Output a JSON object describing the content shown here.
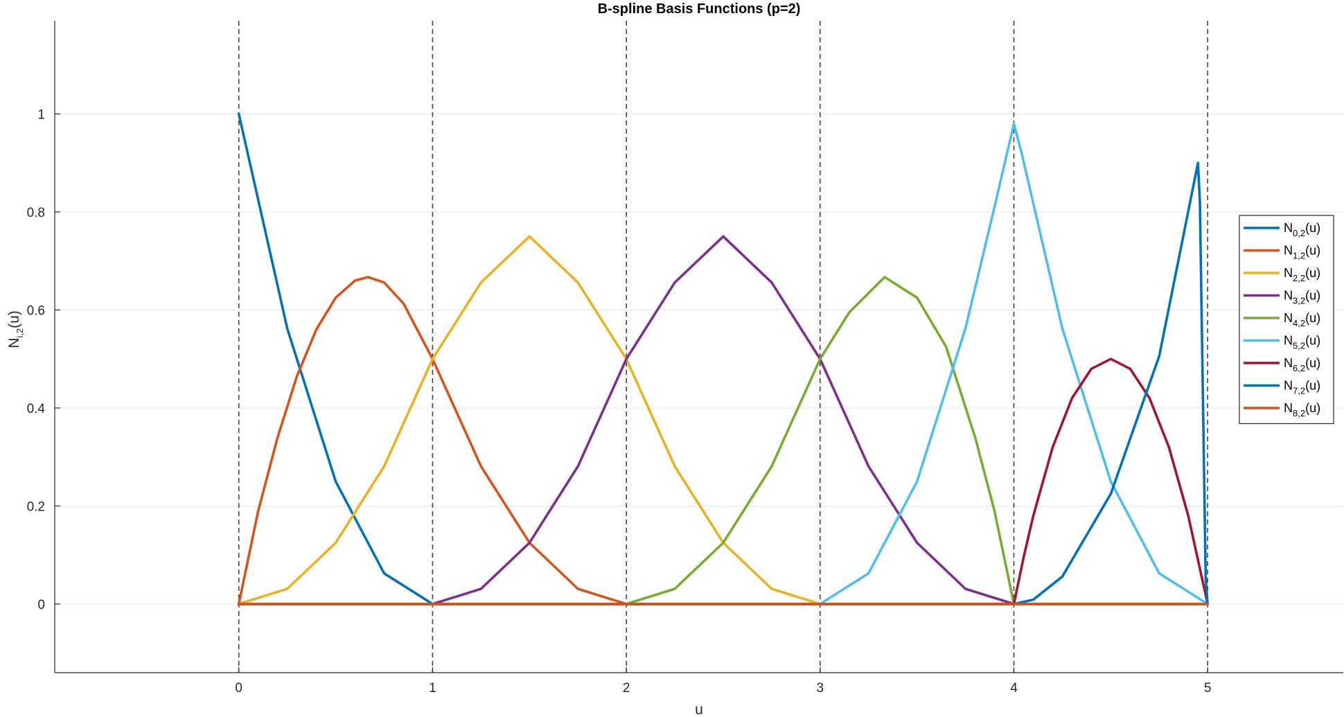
{
  "chart_data": {
    "type": "line",
    "title": "B-spline Basis Functions (p=2)",
    "xlabel": "u",
    "ylabel": {
      "base": "N",
      "sub": "i,2",
      "suffix": "(u)"
    },
    "xlim": [
      -0.95,
      5.7
    ],
    "ylim": [
      -0.14,
      1.19
    ],
    "xticks": [
      0,
      1,
      2,
      3,
      4,
      5
    ],
    "yticks": [
      0,
      0.2,
      0.4,
      0.6,
      0.8,
      1
    ],
    "ytick_labels": [
      "0",
      "0.2",
      "0.4",
      "0.6",
      "0.8",
      "1"
    ],
    "grid": "horizontal",
    "knot_lines": [
      0,
      1,
      2,
      3,
      4,
      5
    ],
    "legend_position": "right",
    "series": [
      {
        "legend_base": "N",
        "legend_sub": "0,2",
        "legend_suffix": "(u)",
        "color": "#0072BD",
        "points": [
          [
            0,
            1
          ],
          [
            0.25,
            0.5625
          ],
          [
            0.5,
            0.25
          ],
          [
            0.75,
            0.0625
          ],
          [
            1,
            0
          ],
          [
            5,
            0
          ]
        ]
      },
      {
        "legend_base": "N",
        "legend_sub": "1,2",
        "legend_suffix": "(u)",
        "color": "#D95319",
        "points": [
          [
            0,
            0
          ],
          [
            0.1,
            0.19
          ],
          [
            0.2,
            0.34
          ],
          [
            0.3,
            0.465
          ],
          [
            0.4,
            0.56
          ],
          [
            0.5,
            0.625
          ],
          [
            0.6,
            0.66
          ],
          [
            0.667,
            0.667
          ],
          [
            0.75,
            0.656
          ],
          [
            0.85,
            0.613
          ],
          [
            1,
            0.5
          ],
          [
            1.25,
            0.281
          ],
          [
            1.5,
            0.125
          ],
          [
            1.75,
            0.031
          ],
          [
            2,
            0
          ],
          [
            5,
            0
          ]
        ]
      },
      {
        "legend_base": "N",
        "legend_sub": "2,2",
        "legend_suffix": "(u)",
        "color": "#EDB120",
        "points": [
          [
            0,
            0
          ],
          [
            0.25,
            0.031
          ],
          [
            0.5,
            0.125
          ],
          [
            0.75,
            0.281
          ],
          [
            1,
            0.5
          ],
          [
            1.25,
            0.656
          ],
          [
            1.5,
            0.75
          ],
          [
            1.75,
            0.656
          ],
          [
            2,
            0.5
          ],
          [
            2.25,
            0.281
          ],
          [
            2.5,
            0.125
          ],
          [
            2.75,
            0.031
          ],
          [
            3,
            0
          ],
          [
            5,
            0
          ]
        ]
      },
      {
        "legend_base": "N",
        "legend_sub": "3,2",
        "legend_suffix": "(u)",
        "color": "#7E2F8E",
        "points": [
          [
            0,
            0
          ],
          [
            1,
            0
          ],
          [
            1.25,
            0.031
          ],
          [
            1.5,
            0.125
          ],
          [
            1.75,
            0.281
          ],
          [
            2,
            0.5
          ],
          [
            2.25,
            0.656
          ],
          [
            2.5,
            0.75
          ],
          [
            2.75,
            0.656
          ],
          [
            3,
            0.5
          ],
          [
            3.25,
            0.281
          ],
          [
            3.5,
            0.125
          ],
          [
            3.75,
            0.031
          ],
          [
            4,
            0
          ],
          [
            5,
            0
          ]
        ]
      },
      {
        "legend_base": "N",
        "legend_sub": "4,2",
        "legend_suffix": "(u)",
        "color": "#77AC30",
        "points": [
          [
            0,
            0
          ],
          [
            2,
            0
          ],
          [
            2.25,
            0.031
          ],
          [
            2.5,
            0.125
          ],
          [
            2.75,
            0.281
          ],
          [
            3,
            0.5
          ],
          [
            3.15,
            0.595
          ],
          [
            3.333,
            0.667
          ],
          [
            3.5,
            0.625
          ],
          [
            3.65,
            0.525
          ],
          [
            3.8,
            0.34
          ],
          [
            3.9,
            0.19
          ],
          [
            4,
            0
          ],
          [
            5,
            0
          ]
        ]
      },
      {
        "legend_base": "N",
        "legend_sub": "5,2",
        "legend_suffix": "(u)",
        "color": "#4DBEEE",
        "points": [
          [
            0,
            0
          ],
          [
            3,
            0
          ],
          [
            3.25,
            0.0625
          ],
          [
            3.5,
            0.25
          ],
          [
            3.75,
            0.5625
          ],
          [
            3.9,
            0.81
          ],
          [
            4,
            0.98
          ],
          [
            4.04,
            0.92
          ],
          [
            4.25,
            0.5625
          ],
          [
            4.5,
            0.25
          ],
          [
            4.75,
            0.0625
          ],
          [
            5,
            0
          ]
        ]
      },
      {
        "legend_base": "N",
        "legend_sub": "6,2",
        "legend_suffix": "(u)",
        "color": "#A2142F",
        "points": [
          [
            0,
            0
          ],
          [
            4,
            0
          ],
          [
            4.05,
            0.095
          ],
          [
            4.1,
            0.18
          ],
          [
            4.2,
            0.32
          ],
          [
            4.3,
            0.42
          ],
          [
            4.4,
            0.48
          ],
          [
            4.5,
            0.5
          ],
          [
            4.6,
            0.48
          ],
          [
            4.7,
            0.42
          ],
          [
            4.8,
            0.32
          ],
          [
            4.9,
            0.18
          ],
          [
            5,
            0
          ]
        ]
      },
      {
        "legend_base": "N",
        "legend_sub": "7,2",
        "legend_suffix": "(u)",
        "color": "#0072BD",
        "points": [
          [
            0,
            0
          ],
          [
            4,
            0
          ],
          [
            4.1,
            0.009
          ],
          [
            4.25,
            0.056
          ],
          [
            4.5,
            0.225
          ],
          [
            4.75,
            0.506
          ],
          [
            4.95,
            0.9
          ],
          [
            4.96,
            0.82
          ],
          [
            4.99,
            0.05
          ],
          [
            5,
            0
          ]
        ]
      },
      {
        "legend_base": "N",
        "legend_sub": "8,2",
        "legend_suffix": "(u)",
        "color": "#D95319",
        "points": [
          [
            0,
            0
          ],
          [
            5,
            0
          ]
        ]
      }
    ]
  }
}
